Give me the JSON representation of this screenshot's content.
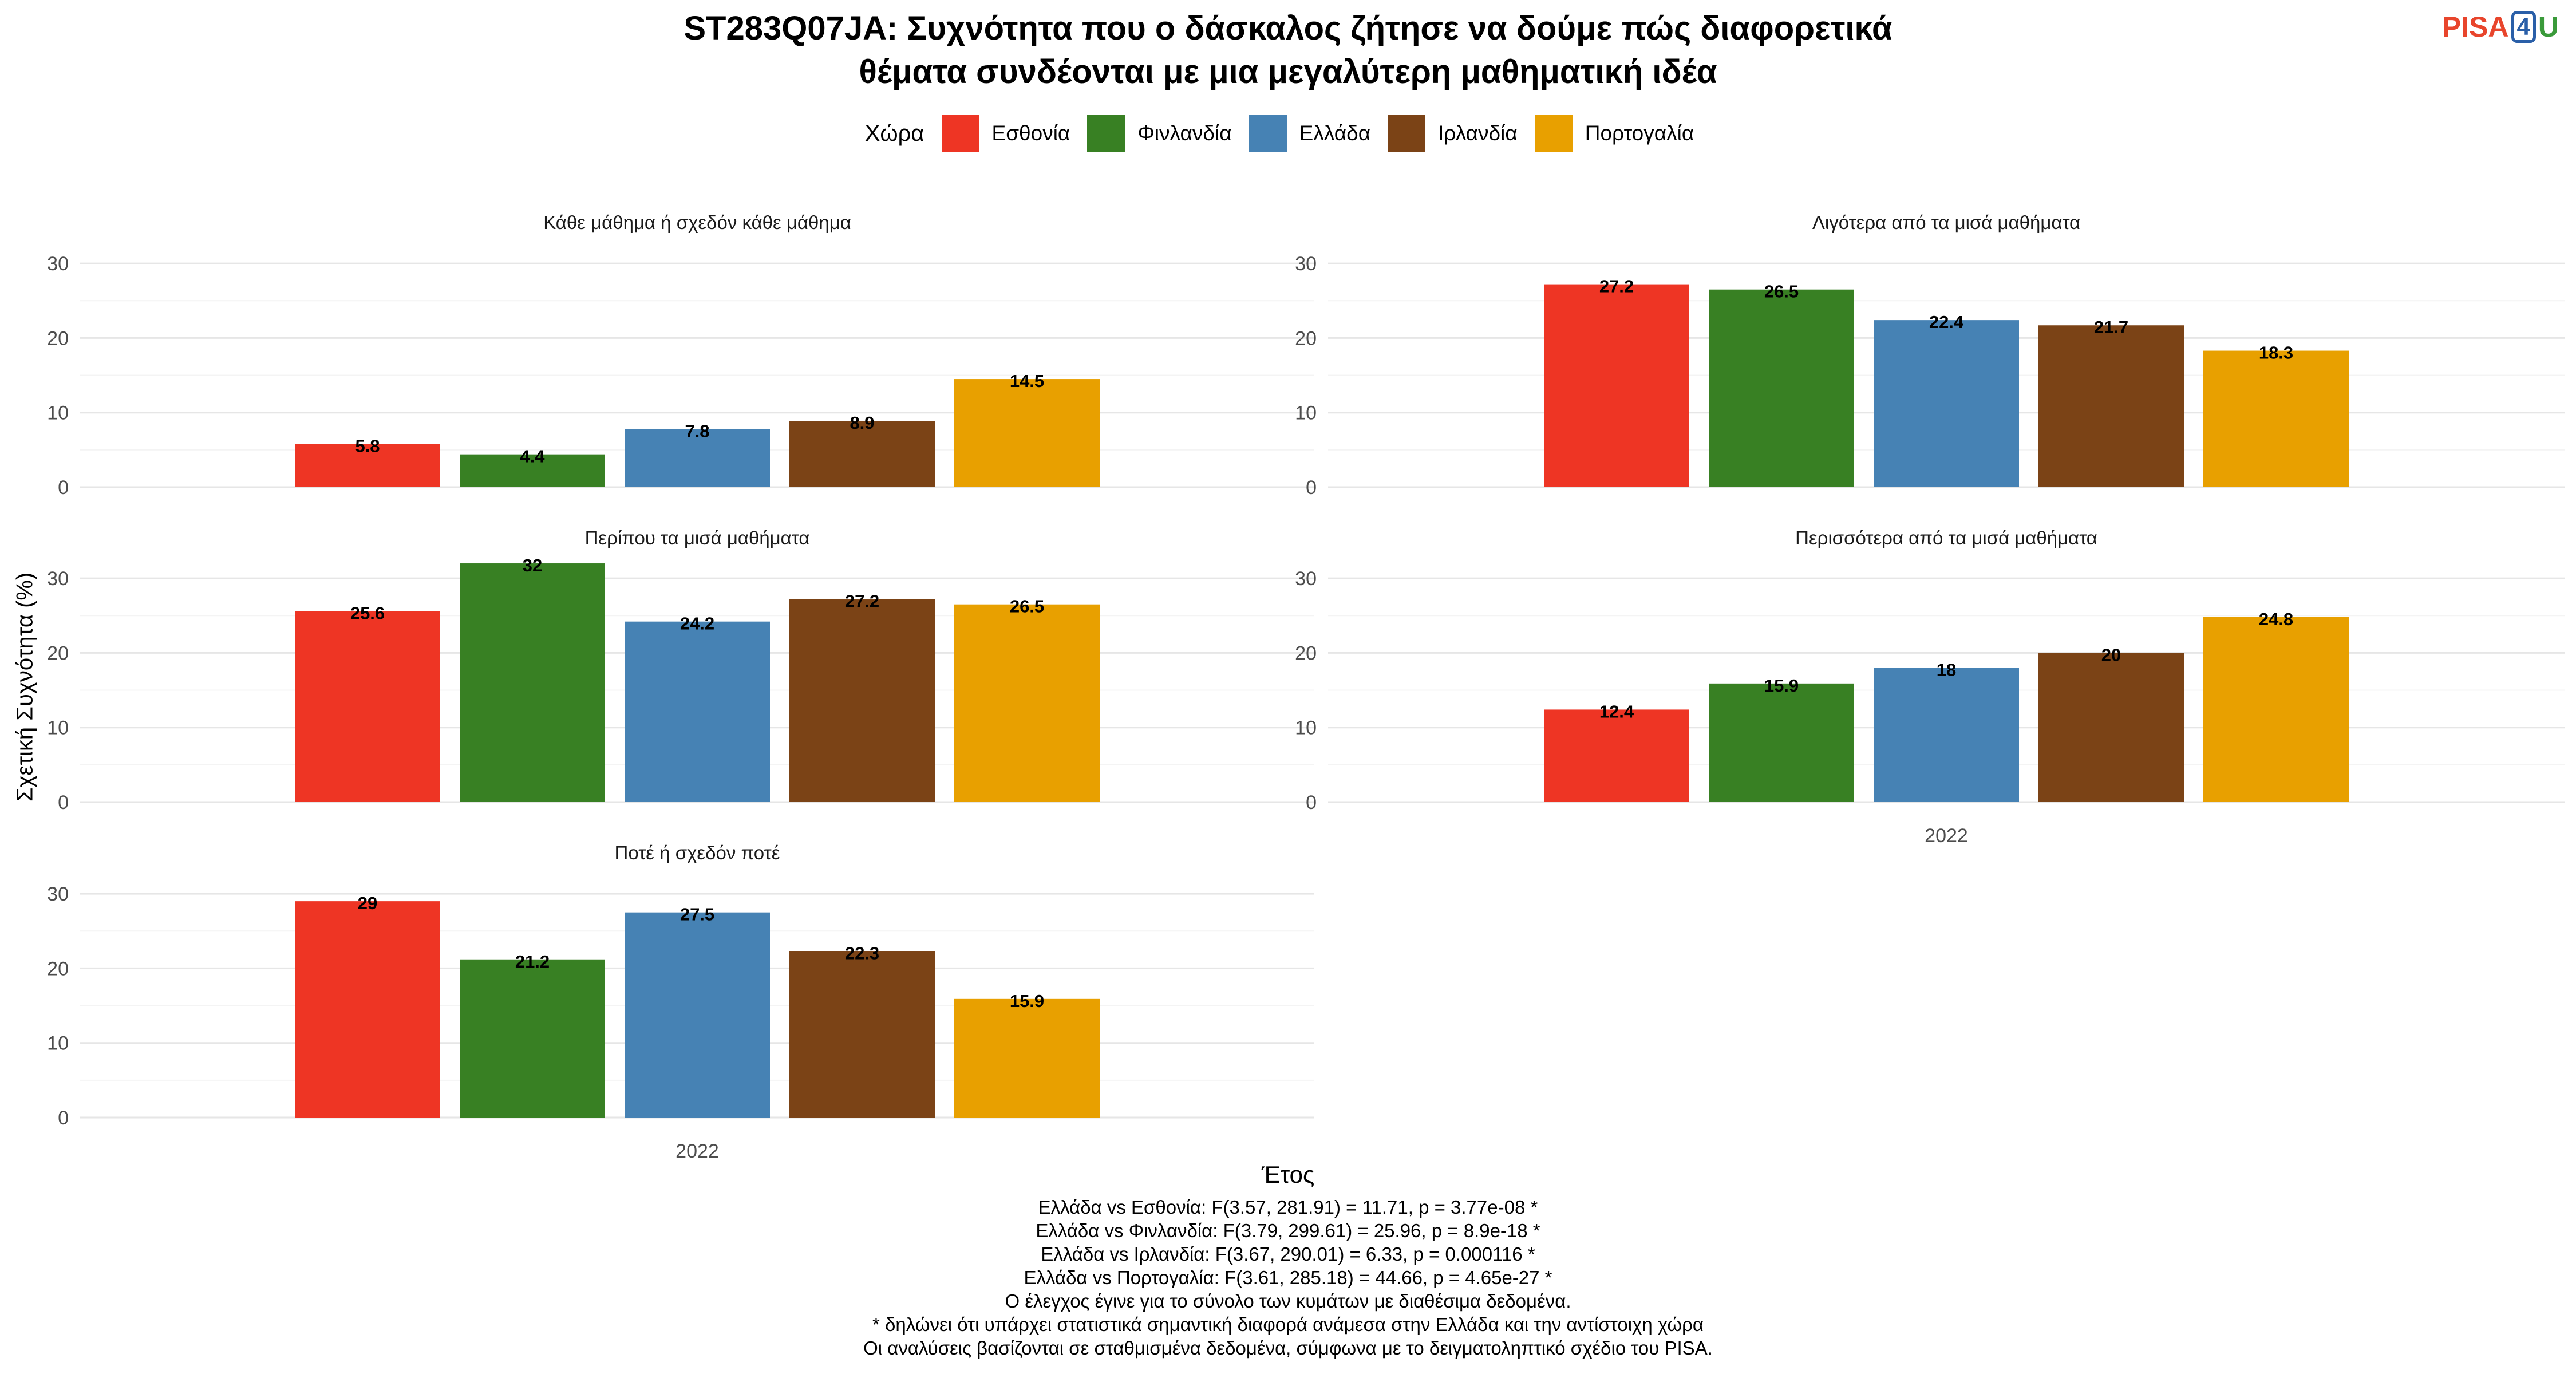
{
  "title_lines": [
    "ST283Q07JA: Συχνότητα που ο δάσκαλος ζήτησε να δούμε πώς διαφορετικά",
    "θέματα συνδέονται με μια μεγαλύτερη μαθηματική ιδέα"
  ],
  "logo": {
    "pisa": "PISA",
    "four": "4",
    "u": "U"
  },
  "legend": {
    "title": "Χώρα",
    "items": [
      {
        "label": "Εσθονία",
        "color": "#EE3524"
      },
      {
        "label": "Φινλανδία",
        "color": "#388023"
      },
      {
        "label": "Ελλάδα",
        "color": "#4682B4"
      },
      {
        "label": "Ιρλανδία",
        "color": "#7B4316"
      },
      {
        "label": "Πορτογαλία",
        "color": "#E8A000"
      }
    ]
  },
  "ylabel": "Σχετική Συχνότητα (%)",
  "xlabel": "Έτος",
  "chart_data": {
    "type": "bar",
    "x_category": "2022",
    "ylim": [
      0,
      30
    ],
    "yticks": [
      0,
      10,
      20,
      30
    ],
    "grid": true,
    "legend_position": "top",
    "series_names": [
      "Εσθονία",
      "Φινλανδία",
      "Ελλάδα",
      "Ιρλανδία",
      "Πορτογαλία"
    ],
    "panels": [
      {
        "title": "Κάθε μάθημα ή σχεδόν κάθε μάθημα",
        "values": [
          5.8,
          4.4,
          7.8,
          8.9,
          14.5
        ],
        "labels": [
          "5.8",
          "4.4",
          "7.8",
          "8.9",
          "14.5"
        ]
      },
      {
        "title": "Λιγότερα από τα μισά μαθήματα",
        "values": [
          27.2,
          26.5,
          22.4,
          21.7,
          18.3
        ],
        "labels": [
          "27.2",
          "26.5",
          "22.4",
          "21.7",
          "18.3"
        ]
      },
      {
        "title": "Περίπου τα μισά μαθήματα",
        "values": [
          25.6,
          32,
          24.2,
          27.2,
          26.5
        ],
        "labels": [
          "25.6",
          "32",
          "24.2",
          "27.2",
          "26.5"
        ]
      },
      {
        "title": "Περισσότερα από τα μισά μαθήματα",
        "values": [
          12.4,
          15.9,
          18,
          20,
          24.8
        ],
        "labels": [
          "12.4",
          "15.9",
          "18",
          "20",
          "24.8"
        ]
      },
      {
        "title": "Ποτέ ή σχεδόν ποτέ",
        "values": [
          29,
          21.2,
          27.5,
          22.3,
          15.9
        ],
        "labels": [
          "29",
          "21.2",
          "27.5",
          "22.3",
          "15.9"
        ]
      }
    ]
  },
  "footer_lines": [
    "Ελλάδα vs Εσθονία: F(3.57, 281.91) = 11.71, p = 3.77e-08 *",
    "Ελλάδα vs Φινλανδία: F(3.79, 299.61) = 25.96, p = 8.9e-18 *",
    "Ελλάδα vs Ιρλανδία: F(3.67, 290.01) = 6.33, p = 0.000116 *",
    "Ελλάδα vs Πορτογαλία: F(3.61, 285.18) = 44.66, p = 4.65e-27 *",
    "Ο έλεγχος έγινε για το σύνολο των κυμάτων με διαθέσιμα δεδομένα.",
    "* δηλώνει ότι υπάρχει στατιστικά σημαντική διαφορά ανάμεσα στην Ελλάδα και την αντίστοιχη χώρα",
    "Οι αναλύσεις βασίζονται σε σταθμισμένα δεδομένα, σύμφωνα με το δειγματοληπτικό σχέδιο του PISA."
  ]
}
